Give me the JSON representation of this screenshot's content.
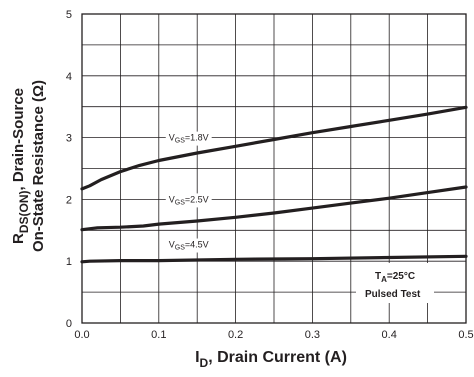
{
  "chart_data": {
    "type": "line",
    "xlabel": "I",
    "xlabel_sub": "D",
    "xlabel_rest": ", Drain Current (A)",
    "ylabel_line1_main": "R",
    "ylabel_line1_sub": "DS(ON)",
    "ylabel_line1_rest": ", Drain-Source",
    "ylabel_line2": "On-State Resistance (Ω)",
    "xlim": [
      0,
      0.5
    ],
    "ylim": [
      0,
      5
    ],
    "x_ticks": [
      "0.0",
      "0.1",
      "0.2",
      "0.3",
      "0.4",
      "0.5"
    ],
    "y_ticks": [
      "0",
      "1",
      "2",
      "3",
      "4",
      "5"
    ],
    "grid": true,
    "series": [
      {
        "name": "V_GS=1.8V",
        "label_main": "V",
        "label_sub": "GS",
        "label_rest": "=1.8V",
        "x": [
          0.0,
          0.01,
          0.025,
          0.05,
          0.075,
          0.1,
          0.15,
          0.2,
          0.25,
          0.3,
          0.35,
          0.4,
          0.45,
          0.5
        ],
        "y": [
          2.17,
          2.22,
          2.32,
          2.45,
          2.55,
          2.63,
          2.75,
          2.86,
          2.97,
          3.08,
          3.18,
          3.28,
          3.38,
          3.49
        ]
      },
      {
        "name": "V_GS=2.5V",
        "label_main": "V",
        "label_sub": "GS",
        "label_rest": "=2.5V",
        "x": [
          0.0,
          0.02,
          0.05,
          0.08,
          0.1,
          0.15,
          0.2,
          0.25,
          0.3,
          0.35,
          0.4,
          0.45,
          0.5
        ],
        "y": [
          1.51,
          1.54,
          1.55,
          1.57,
          1.6,
          1.65,
          1.71,
          1.78,
          1.86,
          1.94,
          2.02,
          2.11,
          2.2
        ]
      },
      {
        "name": "V_GS=4.5V",
        "label_main": "V",
        "label_sub": "GS",
        "label_rest": "=4.5V",
        "x": [
          0.0,
          0.01,
          0.05,
          0.1,
          0.2,
          0.3,
          0.4,
          0.5
        ],
        "y": [
          0.99,
          1.0,
          1.01,
          1.01,
          1.03,
          1.04,
          1.06,
          1.08
        ]
      }
    ],
    "annotations": {
      "ta_main": "T",
      "ta_sub": "A",
      "ta_rest": "=25°C",
      "pulsed": "Pulsed Test"
    }
  }
}
